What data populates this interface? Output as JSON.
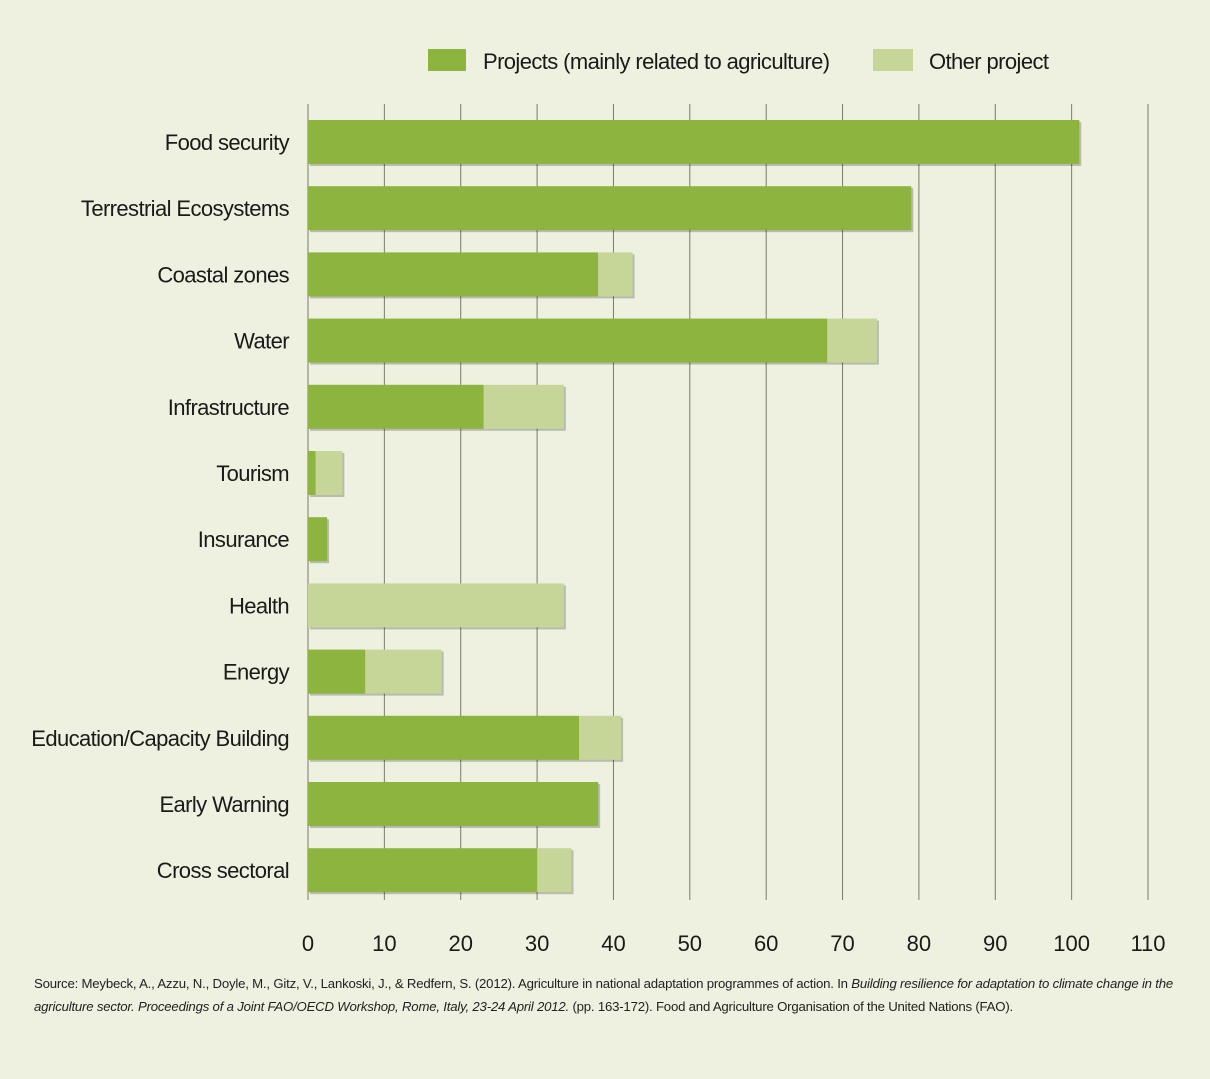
{
  "chart_data": {
    "type": "bar",
    "orientation": "horizontal",
    "stacked": true,
    "categories": [
      "Food security",
      "Terrestrial Ecosystems",
      "Coastal zones",
      "Water",
      "Infrastructure",
      "Tourism",
      "Insurance",
      "Health",
      "Energy",
      "Education/Capacity Building",
      "Early Warning",
      "Cross sectoral"
    ],
    "series": [
      {
        "name": "Projects (mainly related to agriculture)",
        "color": "#8cb43f",
        "values": [
          101,
          79,
          38,
          68,
          23,
          1,
          2.5,
          0,
          7.5,
          35.5,
          38,
          30
        ]
      },
      {
        "name": "Other project",
        "color": "#c5d698",
        "values": [
          0,
          0,
          4.5,
          6.5,
          10.5,
          3.5,
          0,
          33.5,
          10,
          5.5,
          0,
          4.5
        ]
      }
    ],
    "xlim": [
      0,
      110
    ],
    "xticks": [
      0,
      10,
      20,
      30,
      40,
      50,
      60,
      70,
      80,
      90,
      100,
      110
    ],
    "grid": true,
    "legend_position": "top-right"
  },
  "source": {
    "prefix": "Source: Meybeck, A., Azzu, N., Doyle, M., Gitz, V., Lankoski, J., & Redfern, S. (2012). Agriculture in national adaptation programmes of action. In ",
    "italic": "Building resilience for adaptation to climate change in the agriculture sector. Proceedings of a Joint FAO/OECD Workshop, Rome, Italy, 23-24 April 2012.",
    "suffix": " (pp. 163-172). Food and Agriculture Organisation of the United Nations (FAO)."
  }
}
